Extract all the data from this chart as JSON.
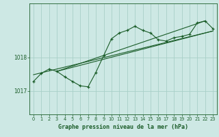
{
  "title": "Graphe pression niveau de la mer (hPa)",
  "bg_color": "#cde8e4",
  "line_color": "#1a5c28",
  "grid_color": "#a8d0c8",
  "axis_color": "#1a5c28",
  "text_color": "#1a5c28",
  "xlim": [
    -0.5,
    23.5
  ],
  "ylim": [
    1016.3,
    1019.6
  ],
  "yticks": [
    1017,
    1018
  ],
  "xticks": [
    0,
    1,
    2,
    3,
    4,
    5,
    6,
    7,
    8,
    9,
    10,
    11,
    12,
    13,
    14,
    15,
    16,
    17,
    18,
    19,
    20,
    21,
    22,
    23
  ],
  "main_series_x": [
    0,
    1,
    2,
    3,
    4,
    5,
    6,
    7,
    8,
    9,
    10,
    11,
    12,
    13,
    14,
    15,
    16,
    17,
    18,
    19,
    20,
    21,
    22,
    23
  ],
  "main_series_y": [
    1017.28,
    1017.52,
    1017.65,
    1017.58,
    1017.42,
    1017.28,
    1017.15,
    1017.12,
    1017.55,
    1018.05,
    1018.55,
    1018.72,
    1018.8,
    1018.92,
    1018.8,
    1018.72,
    1018.52,
    1018.48,
    1018.58,
    1018.62,
    1018.68,
    1019.02,
    1019.08,
    1018.85
  ],
  "trend1_x": [
    0,
    23
  ],
  "trend1_y": [
    1017.48,
    1018.78
  ],
  "trend2_x": [
    3,
    23
  ],
  "trend2_y": [
    1017.58,
    1018.78
  ],
  "trend3_x": [
    3,
    22
  ],
  "trend3_y": [
    1017.58,
    1019.08
  ]
}
